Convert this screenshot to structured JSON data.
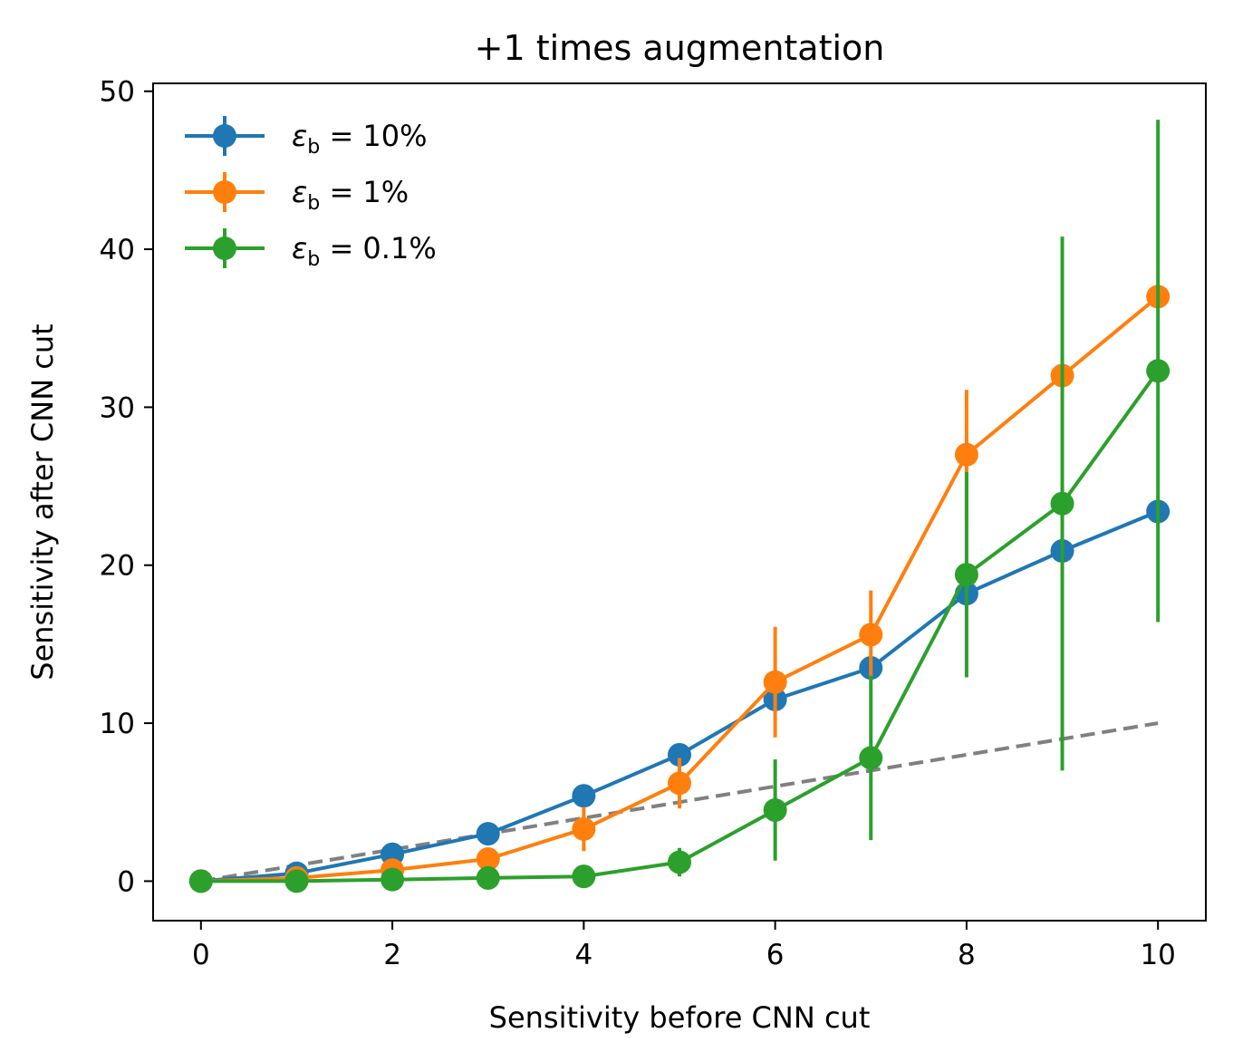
{
  "chart_data": {
    "type": "line",
    "title": "+1 times augmentation",
    "xlabel": "Sensitivity before CNN cut",
    "ylabel": "Sensitivity after CNN cut",
    "xlim": [
      -0.5,
      10.5
    ],
    "ylim": [
      -2.5,
      50.5
    ],
    "xticks": [
      0,
      2,
      4,
      6,
      8,
      10
    ],
    "yticks": [
      0,
      10,
      20,
      30,
      40,
      50
    ],
    "xtick_labels": [
      "0",
      "2",
      "4",
      "6",
      "8",
      "10"
    ],
    "ytick_labels": [
      "0",
      "10",
      "20",
      "30",
      "40",
      "50"
    ],
    "grid": false,
    "legend_position": "upper-left",
    "x": [
      0,
      1,
      2,
      3,
      4,
      5,
      6,
      7,
      8,
      9,
      10
    ],
    "series": [
      {
        "name": "ε_b = 10%",
        "legend_prefix": "ε",
        "legend_sub": "b",
        "legend_suffix": " = 10%",
        "color": "#1f77b4",
        "values": [
          0,
          0.5,
          1.7,
          3.0,
          5.4,
          8.0,
          11.5,
          13.5,
          18.2,
          20.9,
          23.4
        ],
        "errors": [
          0,
          0,
          0,
          0,
          0,
          0,
          0,
          0,
          0,
          0,
          0
        ]
      },
      {
        "name": "ε_b = 1%",
        "legend_prefix": "ε",
        "legend_sub": "b",
        "legend_suffix": " = 1%",
        "color": "#ff7f0e",
        "values": [
          0,
          0.2,
          0.7,
          1.4,
          3.3,
          6.2,
          12.6,
          15.6,
          27.0,
          32.0,
          37.0
        ],
        "errors": [
          0,
          0,
          0,
          0,
          1.4,
          1.6,
          3.5,
          2.8,
          4.1,
          0,
          0
        ]
      },
      {
        "name": "ε_b = 0.1%",
        "legend_prefix": "ε",
        "legend_sub": "b",
        "legend_suffix": " = 0.1%",
        "color": "#2ca02c",
        "values": [
          0,
          0,
          0.1,
          0.2,
          0.3,
          1.2,
          4.5,
          7.8,
          19.4,
          23.9,
          32.3
        ],
        "errors": [
          0,
          0,
          0,
          0,
          0,
          0.9,
          3.2,
          5.2,
          6.5,
          16.9,
          15.9
        ]
      }
    ],
    "reference_line": {
      "style": "dashed",
      "color": "#808080",
      "x": [
        0,
        10
      ],
      "y": [
        0,
        10
      ]
    }
  }
}
